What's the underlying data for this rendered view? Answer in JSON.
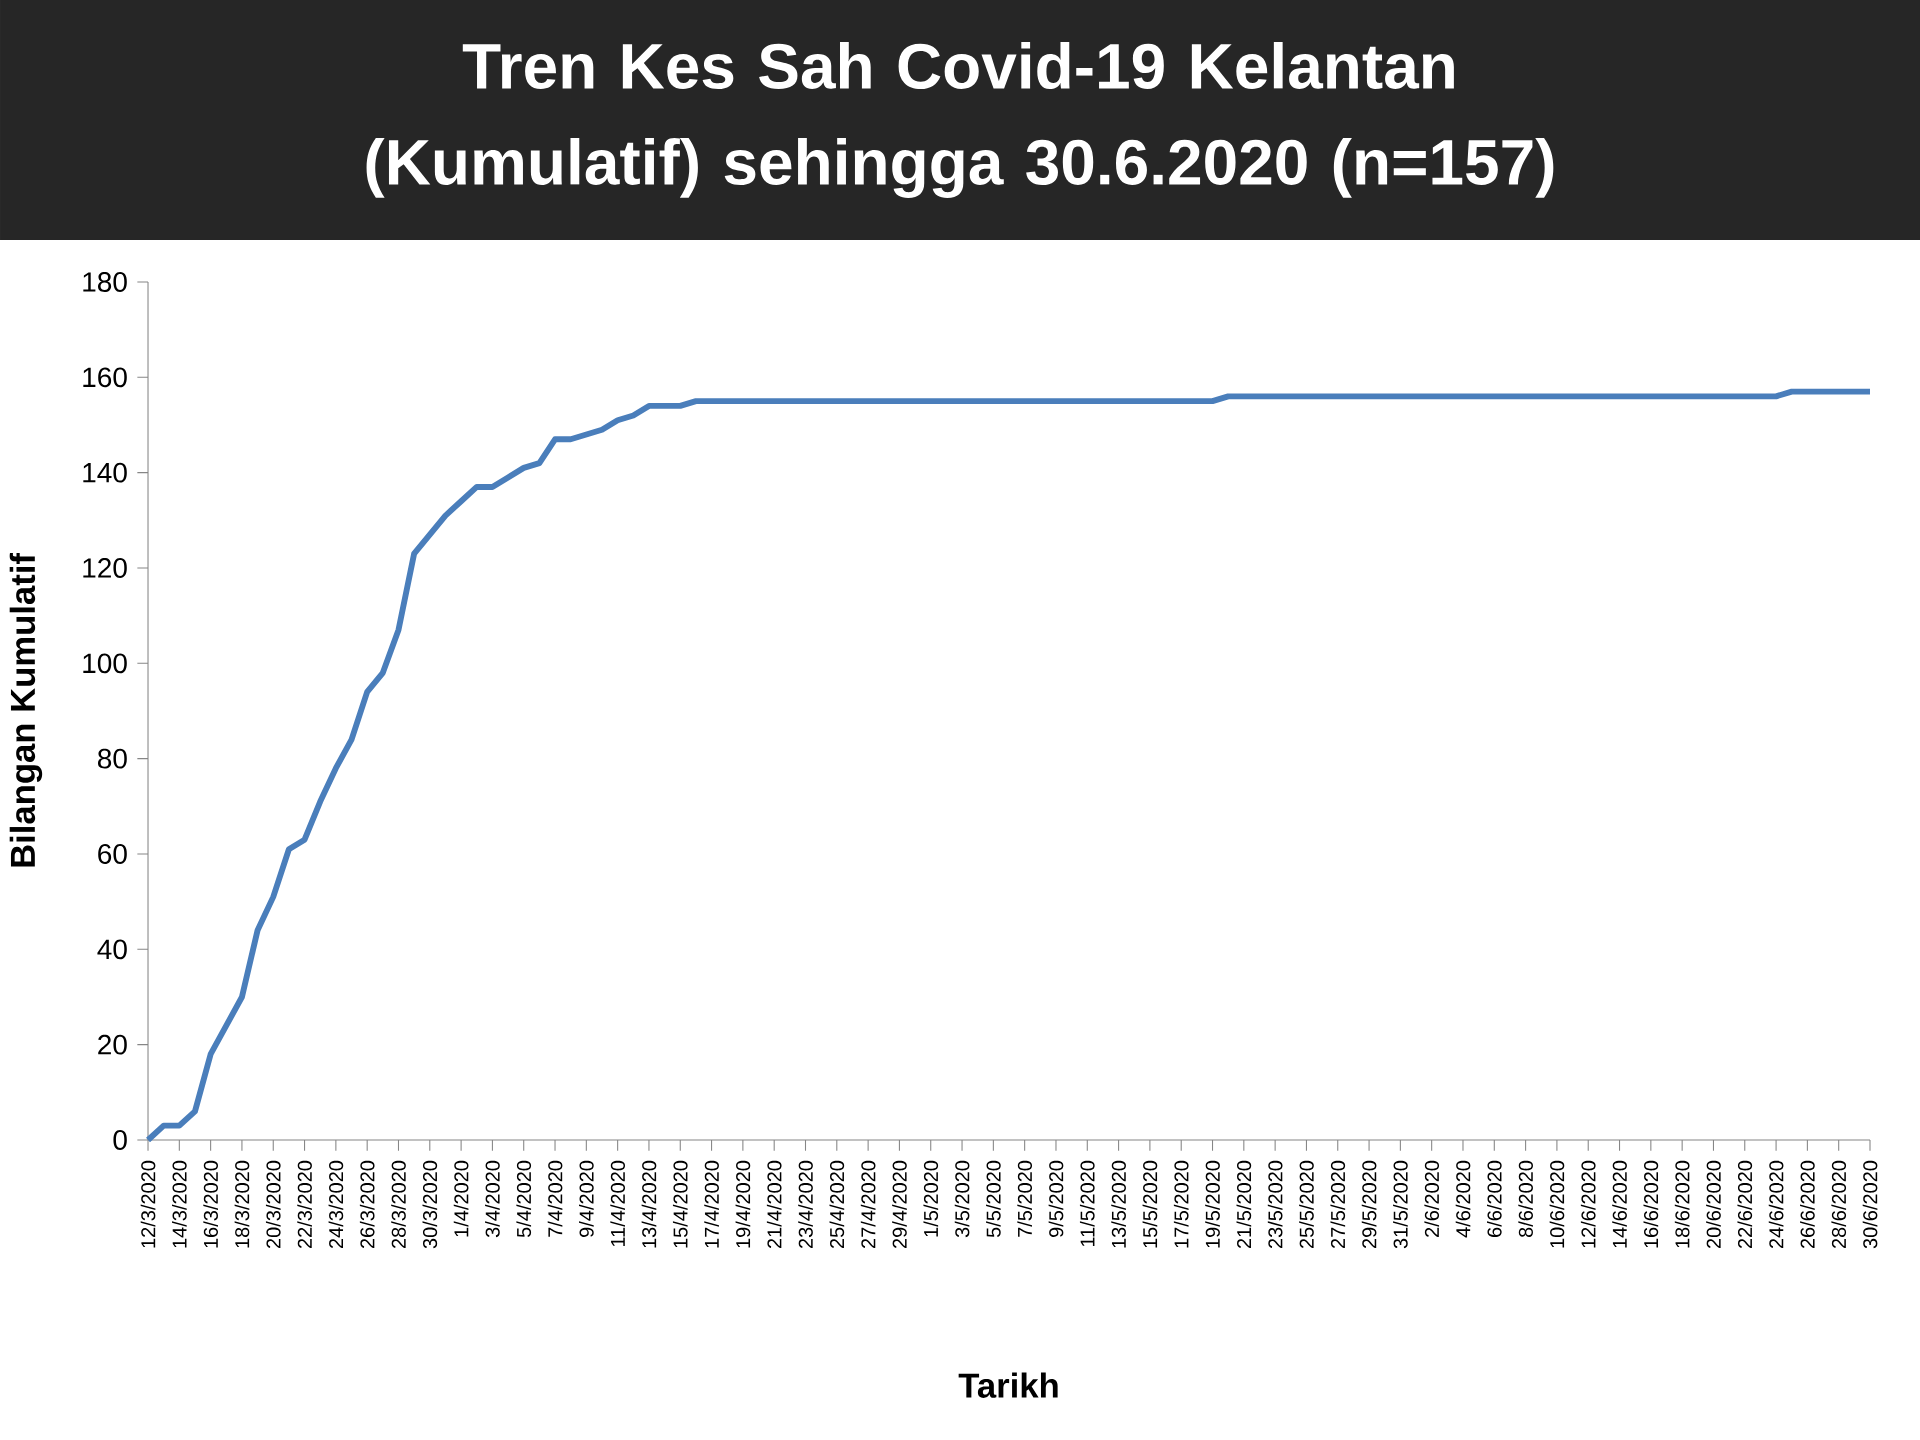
{
  "chart_data": {
    "type": "line",
    "title": "Tren Kes Sah Covid-19 Kelantan (Kumulatif) sehingga 30.6.2020 (n=157)",
    "xlabel": "Tarikh",
    "ylabel": "Bilangan Kumulatif",
    "x": [
      "2020-03-12",
      "2020-03-13",
      "2020-03-14",
      "2020-03-15",
      "2020-03-16",
      "2020-03-17",
      "2020-03-18",
      "2020-03-19",
      "2020-03-20",
      "2020-03-21",
      "2020-03-22",
      "2020-03-23",
      "2020-03-24",
      "2020-03-25",
      "2020-03-26",
      "2020-03-27",
      "2020-03-28",
      "2020-03-29",
      "2020-03-30",
      "2020-03-31",
      "2020-04-01",
      "2020-04-02",
      "2020-04-03",
      "2020-04-04",
      "2020-04-05",
      "2020-04-06",
      "2020-04-07",
      "2020-04-08",
      "2020-04-09",
      "2020-04-10",
      "2020-04-11",
      "2020-04-12",
      "2020-04-13",
      "2020-04-14",
      "2020-04-15",
      "2020-04-16",
      "2020-04-17",
      "2020-04-18",
      "2020-04-19",
      "2020-04-20",
      "2020-04-21",
      "2020-04-22",
      "2020-04-23",
      "2020-04-24",
      "2020-04-25",
      "2020-04-26",
      "2020-04-27",
      "2020-04-28",
      "2020-04-29",
      "2020-04-30",
      "2020-05-01",
      "2020-05-02",
      "2020-05-03",
      "2020-05-04",
      "2020-05-05",
      "2020-05-06",
      "2020-05-07",
      "2020-05-08",
      "2020-05-09",
      "2020-05-10",
      "2020-05-11",
      "2020-05-12",
      "2020-05-13",
      "2020-05-14",
      "2020-05-15",
      "2020-05-16",
      "2020-05-17",
      "2020-05-18",
      "2020-05-19",
      "2020-05-20",
      "2020-05-21",
      "2020-05-22",
      "2020-05-23",
      "2020-05-24",
      "2020-05-25",
      "2020-05-26",
      "2020-05-27",
      "2020-05-28",
      "2020-05-29",
      "2020-05-30",
      "2020-05-31",
      "2020-06-01",
      "2020-06-02",
      "2020-06-03",
      "2020-06-04",
      "2020-06-05",
      "2020-06-06",
      "2020-06-07",
      "2020-06-08",
      "2020-06-09",
      "2020-06-10",
      "2020-06-11",
      "2020-06-12",
      "2020-06-13",
      "2020-06-14",
      "2020-06-15",
      "2020-06-16",
      "2020-06-17",
      "2020-06-18",
      "2020-06-19",
      "2020-06-20",
      "2020-06-21",
      "2020-06-22",
      "2020-06-23",
      "2020-06-24",
      "2020-06-25",
      "2020-06-26",
      "2020-06-27",
      "2020-06-28",
      "2020-06-29",
      "2020-06-30"
    ],
    "series": [
      {
        "color": "#4a7ebb",
        "values": [
          0,
          3,
          3,
          6,
          18,
          24,
          30,
          44,
          51,
          61,
          63,
          71,
          78,
          84,
          94,
          98,
          107,
          123,
          127,
          131,
          134,
          137,
          137,
          139,
          141,
          142,
          147,
          147,
          148,
          149,
          151,
          152,
          154,
          154,
          154,
          155,
          155,
          155,
          155,
          155,
          155,
          155,
          155,
          155,
          155,
          155,
          155,
          155,
          155,
          155,
          155,
          155,
          155,
          155,
          155,
          155,
          155,
          155,
          155,
          155,
          155,
          155,
          155,
          155,
          155,
          155,
          155,
          155,
          155,
          156,
          156,
          156,
          156,
          156,
          156,
          156,
          156,
          156,
          156,
          156,
          156,
          156,
          156,
          156,
          156,
          156,
          156,
          156,
          156,
          156,
          156,
          156,
          156,
          156,
          156,
          156,
          156,
          156,
          156,
          156,
          156,
          156,
          156,
          156,
          156,
          157,
          157,
          157,
          157,
          157,
          157
        ]
      }
    ],
    "xlim": [
      "2020-03-12",
      "2020-06-30"
    ],
    "xticks": [
      {
        "value": "2020-03-12",
        "label": "12/3/2020"
      },
      {
        "value": "2020-03-14",
        "label": "14/3/2020"
      },
      {
        "value": "2020-03-16",
        "label": "16/3/2020"
      },
      {
        "value": "2020-03-18",
        "label": "18/3/2020"
      },
      {
        "value": "2020-03-20",
        "label": "20/3/2020"
      },
      {
        "value": "2020-03-22",
        "label": "22/3/2020"
      },
      {
        "value": "2020-03-24",
        "label": "24/3/2020"
      },
      {
        "value": "2020-03-26",
        "label": "26/3/2020"
      },
      {
        "value": "2020-03-28",
        "label": "28/3/2020"
      },
      {
        "value": "2020-03-30",
        "label": "30/3/2020"
      },
      {
        "value": "2020-04-01",
        "label": "1/4/2020"
      },
      {
        "value": "2020-04-03",
        "label": "3/4/2020"
      },
      {
        "value": "2020-04-05",
        "label": "5/4/2020"
      },
      {
        "value": "2020-04-07",
        "label": "7/4/2020"
      },
      {
        "value": "2020-04-09",
        "label": "9/4/2020"
      },
      {
        "value": "2020-04-11",
        "label": "11/4/2020"
      },
      {
        "value": "2020-04-13",
        "label": "13/4/2020"
      },
      {
        "value": "2020-04-15",
        "label": "15/4/2020"
      },
      {
        "value": "2020-04-17",
        "label": "17/4/2020"
      },
      {
        "value": "2020-04-19",
        "label": "19/4/2020"
      },
      {
        "value": "2020-04-21",
        "label": "21/4/2020"
      },
      {
        "value": "2020-04-23",
        "label": "23/4/2020"
      },
      {
        "value": "2020-04-25",
        "label": "25/4/2020"
      },
      {
        "value": "2020-04-27",
        "label": "27/4/2020"
      },
      {
        "value": "2020-04-29",
        "label": "29/4/2020"
      },
      {
        "value": "2020-05-01",
        "label": "1/5/2020"
      },
      {
        "value": "2020-05-03",
        "label": "3/5/2020"
      },
      {
        "value": "2020-05-05",
        "label": "5/5/2020"
      },
      {
        "value": "2020-05-07",
        "label": "7/5/2020"
      },
      {
        "value": "2020-05-09",
        "label": "9/5/2020"
      },
      {
        "value": "2020-05-11",
        "label": "11/5/2020"
      },
      {
        "value": "2020-05-13",
        "label": "13/5/2020"
      },
      {
        "value": "2020-05-15",
        "label": "15/5/2020"
      },
      {
        "value": "2020-05-17",
        "label": "17/5/2020"
      },
      {
        "value": "2020-05-19",
        "label": "19/5/2020"
      },
      {
        "value": "2020-05-21",
        "label": "21/5/2020"
      },
      {
        "value": "2020-05-23",
        "label": "23/5/2020"
      },
      {
        "value": "2020-05-25",
        "label": "25/5/2020"
      },
      {
        "value": "2020-05-27",
        "label": "27/5/2020"
      },
      {
        "value": "2020-05-29",
        "label": "29/5/2020"
      },
      {
        "value": "2020-05-31",
        "label": "31/5/2020"
      },
      {
        "value": "2020-06-02",
        "label": "2/6/2020"
      },
      {
        "value": "2020-06-04",
        "label": "4/6/2020"
      },
      {
        "value": "2020-06-06",
        "label": "6/6/2020"
      },
      {
        "value": "2020-06-08",
        "label": "8/6/2020"
      },
      {
        "value": "2020-06-10",
        "label": "10/6/2020"
      },
      {
        "value": "2020-06-12",
        "label": "12/6/2020"
      },
      {
        "value": "2020-06-14",
        "label": "14/6/2020"
      },
      {
        "value": "2020-06-16",
        "label": "16/6/2020"
      },
      {
        "value": "2020-06-18",
        "label": "18/6/2020"
      },
      {
        "value": "2020-06-20",
        "label": "20/6/2020"
      },
      {
        "value": "2020-06-22",
        "label": "22/6/2020"
      },
      {
        "value": "2020-06-24",
        "label": "24/6/2020"
      },
      {
        "value": "2020-06-26",
        "label": "26/6/2020"
      },
      {
        "value": "2020-06-28",
        "label": "28/6/2020"
      },
      {
        "value": "2020-06-30",
        "label": "30/6/2020"
      }
    ],
    "ylim": [
      0,
      180
    ],
    "yticks": [
      0,
      20,
      40,
      60,
      80,
      100,
      120,
      140,
      160,
      180
    ],
    "grid": false,
    "marker": "none",
    "line_style": "solid"
  }
}
